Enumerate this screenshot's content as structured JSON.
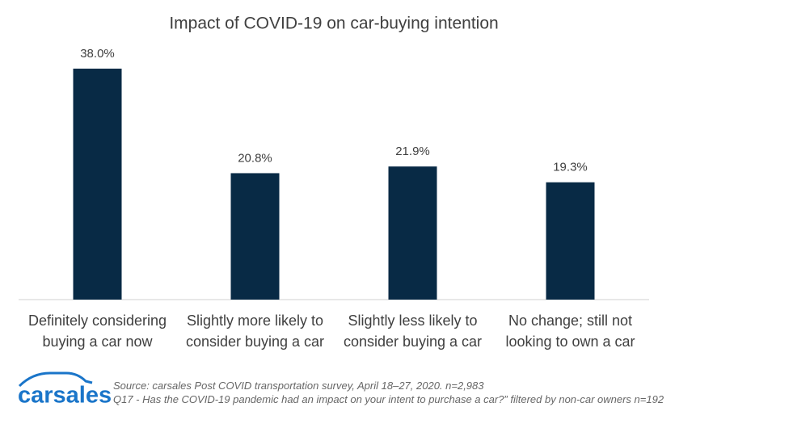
{
  "chart_data": {
    "type": "bar",
    "title": "Impact of COVID-19 on car-buying intention",
    "categories": [
      "Definitely considering buying a car now",
      "Slightly more likely to consider buying a car",
      "Slightly less likely to consider buying a car",
      "No change; still not looking to own a car"
    ],
    "values": [
      38.0,
      20.8,
      21.9,
      19.3
    ],
    "value_labels": [
      "38.0%",
      "20.8%",
      "21.9%",
      "19.3%"
    ],
    "color": "#082a45"
  },
  "source": "Source: carsales Post COVID transportation survey, April 18–27, 2020. n=2,983",
  "note": "Q17 - Has the COVID-19 pandemic had an impact on your intent to purchase a car?”  filtered by non-car owners n=192",
  "logo": "carsales"
}
